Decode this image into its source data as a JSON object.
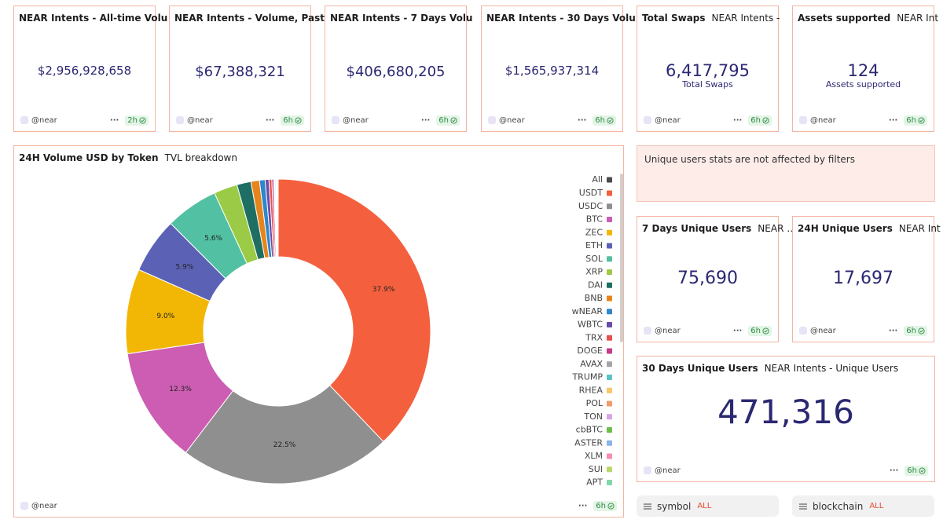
{
  "cards": [
    {
      "title": "NEAR Intents - All-time Volu",
      "value": "$2,956,928,658",
      "author": "@near",
      "age": "2h"
    },
    {
      "title": "NEAR Intents - Volume, Past",
      "value": "$67,388,321",
      "author": "@near",
      "age": "6h"
    },
    {
      "title": "NEAR Intents - 7 Days Volu",
      "value": "$406,680,205",
      "author": "@near",
      "age": "6h"
    },
    {
      "title": "NEAR Intents - 30 Days Volu",
      "value": "$1,565,937,314",
      "author": "@near",
      "age": "6h"
    },
    {
      "title": "Total Swaps",
      "subtitle": "NEAR Intents -",
      "value": "6,417,795",
      "caption": "Total Swaps",
      "author": "@near",
      "age": "6h"
    },
    {
      "title": "Assets supported",
      "subtitle": "NEAR Int",
      "value": "124",
      "caption": "Assets supported",
      "author": "@near",
      "age": "6h"
    }
  ],
  "panel": {
    "title": "24H Volume USD by Token",
    "subtitle": "TVL breakdown",
    "author": "@near",
    "age": "6h"
  },
  "chart_data": {
    "type": "donut",
    "legend_all": "All",
    "legend_all_color": "#4a4a4a",
    "legend": "right",
    "categories": [
      "USDT",
      "USDC",
      "BTC",
      "ZEC",
      "ETH",
      "SOL",
      "XRP",
      "DAI",
      "BNB",
      "wNEAR",
      "WBTC",
      "TRX",
      "DOGE",
      "AVAX",
      "TRUMP",
      "RHEA",
      "POL",
      "TON",
      "cbBTC",
      "ASTER",
      "XLM",
      "SUI",
      "APT"
    ],
    "values": [
      37.9,
      22.5,
      12.3,
      9.0,
      5.9,
      5.6,
      2.5,
      1.5,
      0.9,
      0.6,
      0.4,
      0.3,
      0.2,
      0.1,
      0.1,
      0.05,
      0.05,
      0.05,
      0.03,
      0.03,
      0.02,
      0.02,
      0.02
    ],
    "value_labels": [
      "37.9%",
      "22.5%",
      "12.3%",
      "9.0%",
      "5.9%",
      "5.6%",
      null,
      null,
      null,
      null,
      null,
      null,
      null,
      null,
      null,
      null,
      null,
      null,
      null,
      null,
      null,
      null,
      null
    ],
    "colors": [
      "#f4603e",
      "#8f8f8f",
      "#cc5db3",
      "#f2b705",
      "#5b62b5",
      "#52c0a3",
      "#9bcb46",
      "#1f6e63",
      "#e7851d",
      "#2f87cc",
      "#6a4bab",
      "#e5514f",
      "#c63a86",
      "#a5a5a5",
      "#5bc3c8",
      "#f7c56a",
      "#f29b6b",
      "#d9a3e6",
      "#6cbf4c",
      "#8ab4e8",
      "#f58fae",
      "#b7d86a",
      "#7fd8a6"
    ]
  },
  "notice": "Unique users stats are not affected by filters",
  "user_cards": [
    {
      "title": "7 Days Unique Users",
      "subtitle": "NEAR …",
      "value": "75,690",
      "author": "@near",
      "age": "6h"
    },
    {
      "title": "24H Unique Users",
      "subtitle": "NEAR Int",
      "value": "17,697",
      "author": "@near",
      "age": "6h"
    },
    {
      "title": "30 Days Unique Users",
      "subtitle": "NEAR Intents - Unique Users",
      "value": "471,316",
      "author": "@near",
      "age": "6h"
    }
  ],
  "filters": [
    {
      "label": "symbol",
      "value": "ALL"
    },
    {
      "label": "blockchain",
      "value": "ALL"
    }
  ]
}
